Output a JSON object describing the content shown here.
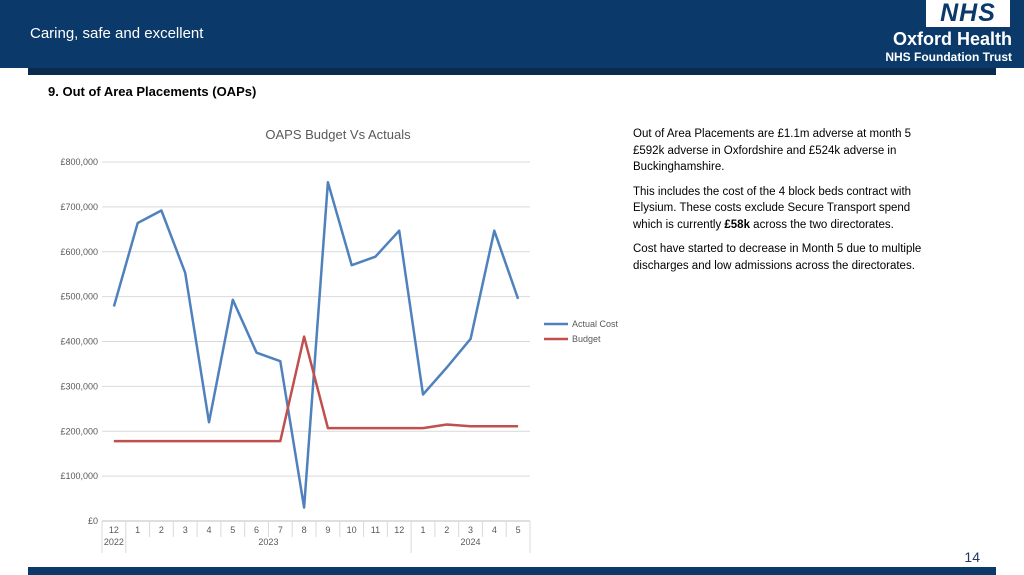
{
  "header": {
    "tagline": "Caring, safe and excellent",
    "logo_nhs": "NHS",
    "logo_org": "Oxford Health",
    "logo_sub": "NHS Foundation Trust"
  },
  "page": {
    "title": "9. Out of Area Placements (OAPs)",
    "number": "14"
  },
  "text": {
    "p1": "Out of Area Placements are £1.1m adverse at month 5 £592k adverse in Oxfordshire and £524k adverse in Buckinghamshire.",
    "p2_before": "This includes the cost of the 4 block beds contract with Elysium.  These costs exclude Secure Transport spend which is currently ",
    "p2_bold": "£58k",
    "p2_after": " across the two directorates.",
    "p3": "Cost have started to decrease in Month 5 due to multiple discharges and low admissions across the directorates."
  },
  "colors": {
    "header_bg": "#0b3a6a",
    "actual": "#4f81bd",
    "budget": "#c0504d"
  },
  "chart_data": {
    "type": "line",
    "title": "OAPS Budget Vs Actuals",
    "categories": [
      "12",
      "1",
      "2",
      "3",
      "4",
      "5",
      "6",
      "7",
      "8",
      "9",
      "10",
      "11",
      "12",
      "1",
      "2",
      "3",
      "4",
      "5"
    ],
    "year_labels": [
      {
        "label": "2022",
        "from": 0,
        "to": 0
      },
      {
        "label": "2023",
        "from": 1,
        "to": 12
      },
      {
        "label": "2024",
        "from": 13,
        "to": 17
      }
    ],
    "y_ticks": [
      "£0",
      "£100,000",
      "£200,000",
      "£300,000",
      "£400,000",
      "£500,000",
      "£600,000",
      "£700,000",
      "£800,000"
    ],
    "ylim": [
      0,
      800000
    ],
    "grid": true,
    "legend_position": "right",
    "series": [
      {
        "name": "Actual Cost",
        "color": "#4f81bd",
        "values": [
          478000,
          664000,
          692000,
          553000,
          220000,
          493000,
          375000,
          356000,
          30000,
          755000,
          570000,
          589000,
          647000,
          282000,
          342000,
          406000,
          647000,
          495000
        ]
      },
      {
        "name": "Budget",
        "color": "#c0504d",
        "values": [
          178000,
          178000,
          178000,
          178000,
          178000,
          178000,
          178000,
          178000,
          411000,
          207000,
          207000,
          207000,
          207000,
          207000,
          215000,
          211000,
          211000,
          211000
        ]
      }
    ]
  }
}
